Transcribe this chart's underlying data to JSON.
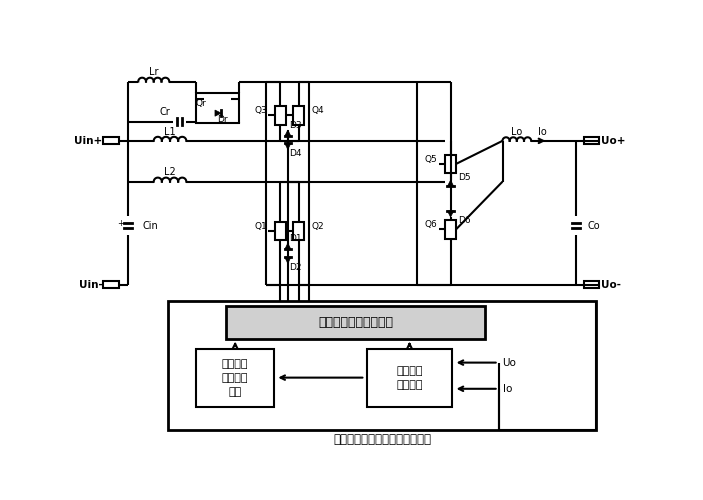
{
  "bg": "#ffffff",
  "lc": "#000000",
  "lw": 1.5,
  "ctrl_label": "交错同步开关逻辑控制",
  "slow_label": "慢标分岔\n谐振控制\n模块",
  "samp_label": "系统变量\n采样模块",
  "bottom_label": "电动汽车充电桩电路控制子系统",
  "Uo_txt": "Uo",
  "Io_txt": "Io",
  "Uin_plus": "Uin+",
  "Uin_minus": "Uin-",
  "Uo_plus": "Uo+",
  "Uo_minus": "Uo-",
  "Lr": "Lr",
  "L1": "L1",
  "L2": "L2",
  "Lo": "Lo",
  "Cr": "Cr",
  "Cin": "Cin",
  "Co": "Co",
  "Qr": "Qr",
  "Dr": "Dr",
  "Q1": "Q1",
  "Q2": "Q2",
  "Q3": "Q3",
  "Q4": "Q4",
  "Q5": "Q5",
  "Q6": "Q6",
  "D1": "D1",
  "D2": "D2",
  "D3": "D3",
  "D4": "D4",
  "D5": "D5",
  "D6": "D6",
  "Io_label": "Io"
}
